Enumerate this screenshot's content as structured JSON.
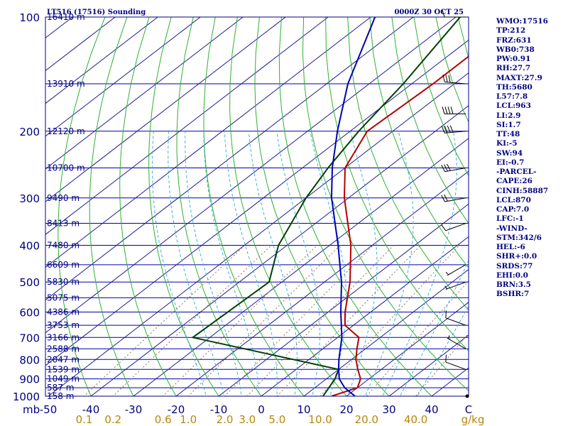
{
  "header": {
    "station": "LT516 (17516) Sounding",
    "time": "0000Z 30 OCT 25"
  },
  "indices": [
    "WMO:17516",
    "TP:212",
    "FRZ:631",
    "WB0:738",
    "PW:0.91",
    "RH:27.7",
    "MAXT:27.9",
    "TH:5680",
    "L57:7.8",
    "LCL:963",
    "LI:2.9",
    "SI:1.7",
    "TT:48",
    "KI:-5",
    "SW:94",
    "EI:-0.7",
    "-PARCEL-",
    "CAPE:26",
    "CINH:58887",
    "LCL:870",
    "CAP:7.0",
    "LFC:-1",
    "-WIND-",
    "STM:342/6",
    "HEL:-6",
    "SHR+:0.0",
    "SRDS:77",
    "EHI:0.0",
    "BRN:3.5",
    "BSHR:7"
  ],
  "colors": {
    "frame": "#000080",
    "isobar": "#0000aa",
    "isotherm": "#1e1e96",
    "dry_adiabat": "#30b030",
    "moist_adiabat": "#40b0e0",
    "mixing_ratio": "#8b7355",
    "temperature": "#b40000",
    "dewpoint": "#004000",
    "parcel": "#0000b4",
    "wind": "#000000",
    "mixing_label": "#b8860b"
  },
  "chart_data": {
    "type": "skew-t",
    "x_axis": {
      "unit_label": "mb",
      "tick_labels": [
        "-50",
        "-40",
        "-30",
        "-20",
        "-10",
        "0",
        "10",
        "20",
        "30",
        "40",
        "C"
      ],
      "temps_c": [
        -50,
        -40,
        -30,
        -20,
        -10,
        0,
        10,
        20,
        30,
        40
      ]
    },
    "mixing_ratio_axis": {
      "unit_label": "g/kg",
      "values": [
        0.1,
        0.2,
        0.6,
        1.0,
        2.0,
        3.0,
        5.0,
        10.0,
        20.0,
        40.0
      ],
      "labels": [
        "0.1",
        "0.2",
        "0.6",
        "1.0",
        "2.0",
        "3.0",
        "5.0",
        "10.0",
        "20.0",
        "40.0"
      ]
    },
    "pressure_labels": [
      {
        "p": 100,
        "label": "100"
      },
      {
        "p": 200,
        "label": "200"
      },
      {
        "p": 300,
        "label": "300"
      },
      {
        "p": 400,
        "label": "400"
      },
      {
        "p": 500,
        "label": "500"
      },
      {
        "p": 600,
        "label": "600"
      },
      {
        "p": 700,
        "label": "700"
      },
      {
        "p": 800,
        "label": "800"
      },
      {
        "p": 900,
        "label": "900"
      },
      {
        "p": 1000,
        "label": "1000"
      }
    ],
    "height_levels": [
      {
        "p": 100,
        "label": "16410 m"
      },
      {
        "p": 150,
        "label": "13910 m"
      },
      {
        "p": 200,
        "label": "12120 m"
      },
      {
        "p": 250,
        "label": "10700 m"
      },
      {
        "p": 300,
        "label": "9490 m"
      },
      {
        "p": 350,
        "label": "8413 m"
      },
      {
        "p": 400,
        "label": "7480 m"
      },
      {
        "p": 450,
        "label": "6609 m"
      },
      {
        "p": 500,
        "label": "5830 m"
      },
      {
        "p": 550,
        "label": "5075 m"
      },
      {
        "p": 600,
        "label": "4386 m"
      },
      {
        "p": 650,
        "label": "3753 m"
      },
      {
        "p": 700,
        "label": "3166 m"
      },
      {
        "p": 750,
        "label": "2588 m"
      },
      {
        "p": 800,
        "label": "2047 m"
      },
      {
        "p": 850,
        "label": "1539 m"
      },
      {
        "p": 900,
        "label": "1049 m"
      },
      {
        "p": 950,
        "label": "587 m"
      },
      {
        "p": 1000,
        "label": "158 m"
      }
    ],
    "series": [
      {
        "name": "Temperature",
        "points": [
          {
            "p": 1000,
            "t": 16.5
          },
          {
            "p": 950,
            "t": 20.0
          },
          {
            "p": 900,
            "t": 18.0
          },
          {
            "p": 850,
            "t": 14.5
          },
          {
            "p": 800,
            "t": 11.0
          },
          {
            "p": 750,
            "t": 8.0
          },
          {
            "p": 700,
            "t": 5.0
          },
          {
            "p": 650,
            "t": -2.0
          },
          {
            "p": 600,
            "t": -6.0
          },
          {
            "p": 500,
            "t": -14.0
          },
          {
            "p": 400,
            "t": -25.0
          },
          {
            "p": 300,
            "t": -41.0
          },
          {
            "p": 250,
            "t": -50.0
          },
          {
            "p": 200,
            "t": -56.0
          },
          {
            "p": 150,
            "t": -55.0
          },
          {
            "p": 100,
            "t": -55.0
          }
        ]
      },
      {
        "name": "Dewpoint",
        "points": [
          {
            "p": 1000,
            "t": 14.5
          },
          {
            "p": 900,
            "t": 12.0
          },
          {
            "p": 850,
            "t": 10.0
          },
          {
            "p": 700,
            "t": -34.0
          },
          {
            "p": 500,
            "t": -33.0
          },
          {
            "p": 400,
            "t": -42.0
          },
          {
            "p": 300,
            "t": -50.0
          },
          {
            "p": 250,
            "t": -54.0
          },
          {
            "p": 200,
            "t": -58.0
          },
          {
            "p": 150,
            "t": -62.0
          },
          {
            "p": 100,
            "t": -69.0
          }
        ]
      },
      {
        "name": "Parcel",
        "points": [
          {
            "p": 1000,
            "t": 22.0
          },
          {
            "p": 950,
            "t": 17.0
          },
          {
            "p": 900,
            "t": 13.0
          },
          {
            "p": 850,
            "t": 10.0
          },
          {
            "p": 800,
            "t": 7.0
          },
          {
            "p": 700,
            "t": 1.0
          },
          {
            "p": 600,
            "t": -7.0
          },
          {
            "p": 500,
            "t": -16.0
          },
          {
            "p": 400,
            "t": -28.0
          },
          {
            "p": 300,
            "t": -44.0
          },
          {
            "p": 250,
            "t": -53.0
          },
          {
            "p": 200,
            "t": -63.0
          },
          {
            "p": 150,
            "t": -75.0
          },
          {
            "p": 100,
            "t": -89.0
          }
        ]
      }
    ],
    "wind_barbs": [
      {
        "p": 850,
        "dir": 290,
        "speed": 10
      },
      {
        "p": 750,
        "dir": 300,
        "speed": 5
      },
      {
        "p": 650,
        "dir": 290,
        "speed": 10
      },
      {
        "p": 500,
        "dir": 250,
        "speed": 5
      },
      {
        "p": 450,
        "dir": 240,
        "speed": 5
      },
      {
        "p": 350,
        "dir": 250,
        "speed": 10
      },
      {
        "p": 300,
        "dir": 260,
        "speed": 20
      },
      {
        "p": 250,
        "dir": 260,
        "speed": 30
      },
      {
        "p": 200,
        "dir": 265,
        "speed": 40
      },
      {
        "p": 180,
        "dir": 270,
        "speed": 40
      },
      {
        "p": 150,
        "dir": 275,
        "speed": 30
      },
      {
        "p": 100,
        "dir": 270,
        "speed": 10
      }
    ]
  }
}
